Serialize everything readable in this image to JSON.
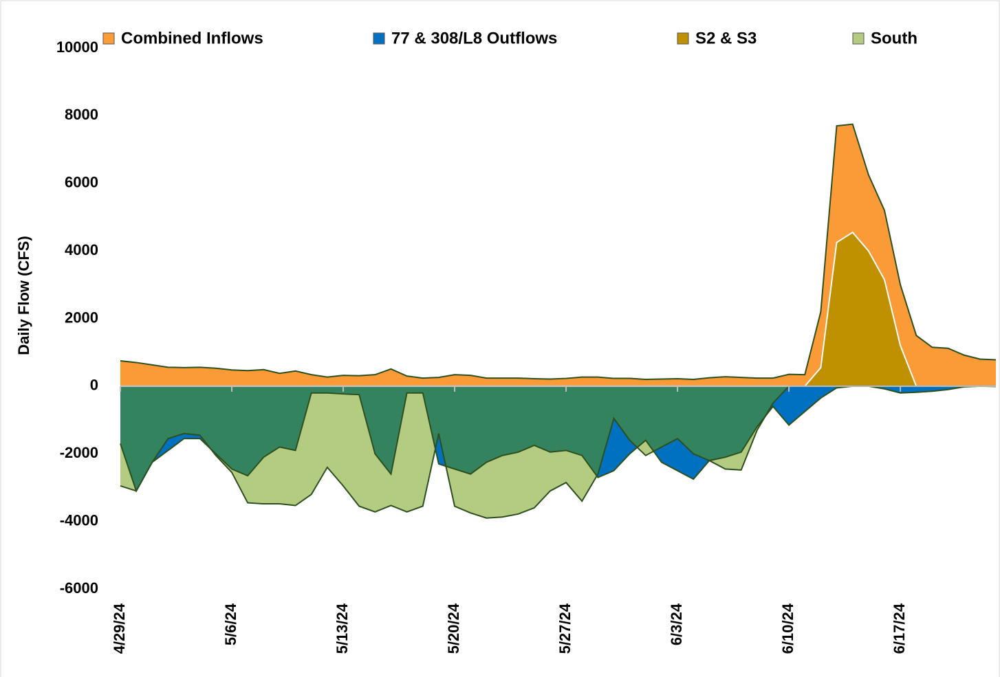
{
  "chart_data": {
    "type": "area",
    "y_label": "Daily Flow (CFS)",
    "categories": [
      "4/29/24",
      null,
      null,
      null,
      null,
      null,
      null,
      "5/6/24",
      null,
      null,
      null,
      null,
      null,
      null,
      "5/13/24",
      null,
      null,
      null,
      null,
      null,
      null,
      "5/20/24",
      null,
      null,
      null,
      null,
      null,
      null,
      "5/27/24",
      null,
      null,
      null,
      null,
      null,
      null,
      "6/3/24",
      null,
      null,
      null,
      null,
      null,
      null,
      "6/10/24",
      null,
      null,
      null,
      null,
      null,
      null,
      "6/17/24",
      null,
      null,
      null,
      null,
      null,
      null
    ],
    "series": [
      {
        "name": "Combined Inflows",
        "color": "#fa9b38",
        "values": [
          750,
          700,
          630,
          560,
          550,
          560,
          530,
          480,
          460,
          490,
          380,
          450,
          340,
          270,
          320,
          310,
          340,
          510,
          300,
          240,
          260,
          340,
          320,
          240,
          240,
          240,
          220,
          210,
          230,
          270,
          270,
          230,
          230,
          200,
          210,
          220,
          200,
          250,
          280,
          260,
          240,
          240,
          350,
          340,
          2200,
          7700,
          7750,
          6250,
          5200,
          3000,
          1500,
          1150,
          1120,
          920,
          800,
          780
        ]
      },
      {
        "name": "77 & 308/L8 Outflows",
        "color": "#0070c0",
        "values": [
          -1700,
          -3100,
          -2250,
          -1900,
          -1550,
          -1550,
          -2000,
          -2450,
          -2650,
          -2100,
          -1800,
          -1900,
          -200,
          -200,
          -230,
          -250,
          -2000,
          -2600,
          -200,
          -200,
          -2300,
          -2450,
          -2600,
          -2250,
          -2050,
          -1950,
          -1750,
          -1950,
          -1900,
          -2050,
          -2700,
          -2500,
          -2000,
          -1600,
          -2250,
          -2500,
          -2750,
          -2200,
          -2100,
          -1950,
          -1200,
          -600,
          -1150,
          -750,
          -350,
          -50,
          0,
          0,
          -80,
          -200,
          -180,
          -150,
          -100,
          -20,
          0,
          -10
        ]
      },
      {
        "name": "S2 & S3",
        "color": "#bf9000",
        "values": [
          0,
          0,
          0,
          0,
          0,
          0,
          0,
          0,
          0,
          0,
          0,
          0,
          0,
          0,
          0,
          0,
          0,
          0,
          0,
          0,
          0,
          0,
          0,
          0,
          0,
          0,
          0,
          0,
          0,
          0,
          0,
          0,
          0,
          0,
          0,
          0,
          0,
          0,
          0,
          0,
          0,
          0,
          0,
          0,
          550,
          4250,
          4550,
          4000,
          3150,
          1200,
          0,
          0,
          0,
          0,
          0,
          0
        ]
      },
      {
        "name": "South",
        "color": "#b3cc82",
        "values": [
          -2950,
          -3100,
          -2250,
          -1550,
          -1400,
          -1450,
          -2050,
          -2550,
          -3450,
          -3480,
          -3480,
          -3530,
          -3200,
          -2400,
          -2950,
          -3550,
          -3720,
          -3530,
          -3720,
          -3550,
          -1400,
          -3550,
          -3750,
          -3900,
          -3870,
          -3780,
          -3600,
          -3100,
          -2850,
          -3400,
          -2600,
          -950,
          -1600,
          -2050,
          -1800,
          -1550,
          -2000,
          -2200,
          -2450,
          -2480,
          -1300,
          -500,
          0,
          0,
          0,
          0,
          0,
          0,
          0,
          0,
          0,
          0,
          0,
          0,
          0,
          0
        ]
      }
    ],
    "overlap_color": "#33845e",
    "ylim": [
      -6000,
      10000
    ],
    "yticks": [
      -6000,
      -4000,
      -2000,
      0,
      2000,
      4000,
      6000,
      8000,
      10000
    ]
  }
}
